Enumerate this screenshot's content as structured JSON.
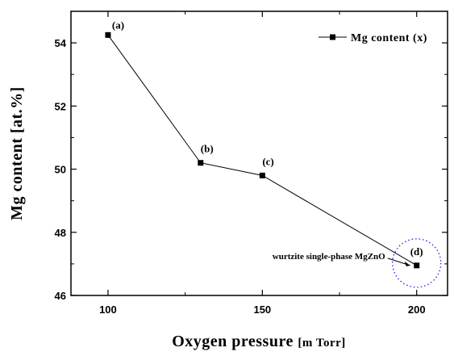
{
  "chart_data": {
    "type": "line",
    "xlabel": "Oxygen pressure",
    "xlabel_unit": "[m Torr]",
    "ylabel": "Mg content [at.%]",
    "xlim": [
      88,
      210
    ],
    "ylim": [
      46,
      55
    ],
    "x_ticks": [
      100,
      150,
      200
    ],
    "x_tick_labels": [
      "100",
      "150",
      "200"
    ],
    "y_ticks": [
      46,
      48,
      50,
      52,
      54
    ],
    "y_tick_labels": [
      "46",
      "48",
      "50",
      "52",
      "54"
    ],
    "grid": false,
    "legend_position": "top-right",
    "series": [
      {
        "name": "Mg content (x)",
        "marker": "square",
        "color": "#000000",
        "x": [
          100,
          130,
          150,
          200
        ],
        "y": [
          54.25,
          50.2,
          49.8,
          46.95
        ],
        "point_labels": [
          "(a)",
          "(b)",
          "(c)",
          "(d)"
        ]
      }
    ],
    "annotations": [
      {
        "text": "wurtzite single-phase MgZnO",
        "target_x": 200,
        "target_y": 46.95,
        "highlight": "dotted-circle",
        "highlight_color": "#1a1aff"
      }
    ]
  }
}
